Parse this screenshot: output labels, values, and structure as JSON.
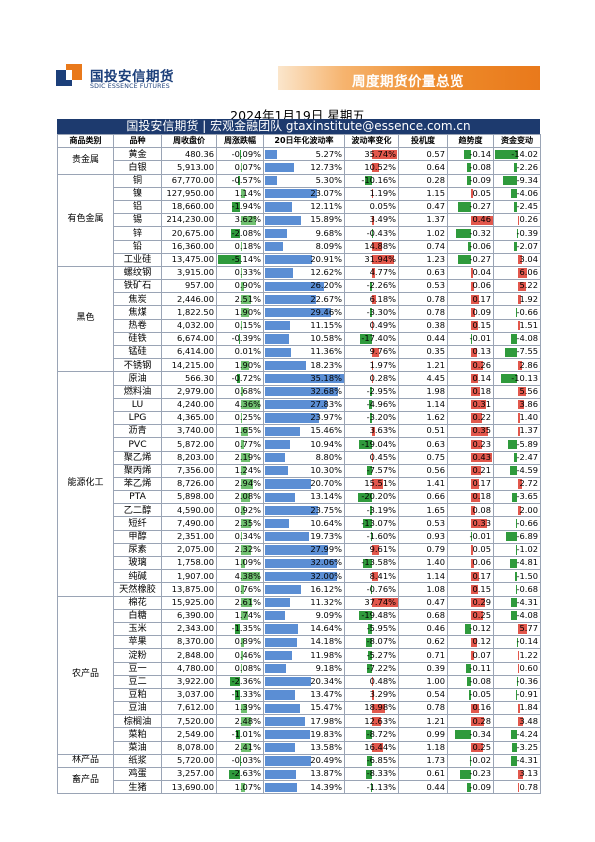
{
  "header": {
    "logo_cn": "国投安信期货",
    "logo_en": "SDIC ESSENCE FUTURES",
    "banner_title": "周度期货价量总览",
    "date": "2024年1月19日 星期五",
    "team_line": "国投安信期货 | 宏观金融团队 gtaxinstitute@essence.com.cn",
    "brand_color": "#1d3a6e",
    "accent_color": "#ee8c2c"
  },
  "columns": [
    "商品类别",
    "品种",
    "周收盘价",
    "周涨跌幅",
    "20日年化波动率",
    "波动率变化",
    "投机度",
    "趋势度",
    "资金变动"
  ],
  "groups": [
    {
      "category": "贵金属",
      "rows": [
        {
          "name": "黄金",
          "close": "480.36",
          "chg": "-0.09%",
          "vol": "5.27%",
          "volchg": "35.74%",
          "spec": "0.57",
          "trend": "-0.14",
          "fund": "-14.02"
        },
        {
          "name": "白银",
          "close": "5,913.00",
          "chg": "0.07%",
          "vol": "12.73%",
          "volchg": "10.52%",
          "spec": "0.64",
          "trend": "-0.08",
          "fund": "-2.26"
        }
      ]
    },
    {
      "category": "有色金属",
      "rows": [
        {
          "name": "铜",
          "close": "67,770.00",
          "chg": "-0.57%",
          "vol": "5.30%",
          "volchg": "-10.16%",
          "spec": "0.28",
          "trend": "-0.09",
          "fund": "-9.34"
        },
        {
          "name": "镍",
          "close": "127,950.00",
          "chg": "1.14%",
          "vol": "23.07%",
          "volchg": "1.19%",
          "spec": "1.15",
          "trend": "0.05",
          "fund": "-4.06"
        },
        {
          "name": "铝",
          "close": "18,660.00",
          "chg": "-1.94%",
          "vol": "12.11%",
          "volchg": "0.05%",
          "spec": "0.47",
          "trend": "-0.27",
          "fund": "-2.45"
        },
        {
          "name": "锡",
          "close": "214,230.00",
          "chg": "3.62%",
          "vol": "15.89%",
          "volchg": "3.49%",
          "spec": "1.37",
          "trend": "0.46",
          "fund": "0.26"
        },
        {
          "name": "锌",
          "close": "20,675.00",
          "chg": "-2.08%",
          "vol": "9.68%",
          "volchg": "-0.43%",
          "spec": "1.02",
          "trend": "-0.32",
          "fund": "-0.39"
        },
        {
          "name": "铅",
          "close": "16,360.00",
          "chg": "0.18%",
          "vol": "8.09%",
          "volchg": "14.88%",
          "spec": "0.74",
          "trend": "-0.06",
          "fund": "-2.07"
        },
        {
          "name": "工业硅",
          "close": "13,475.00",
          "chg": "-5.14%",
          "vol": "20.91%",
          "volchg": "31.94%",
          "spec": "1.23",
          "trend": "-0.27",
          "fund": "3.04"
        }
      ]
    },
    {
      "category": "黑色",
      "rows": [
        {
          "name": "螺纹钢",
          "close": "3,915.00",
          "chg": "0.33%",
          "vol": "12.62%",
          "volchg": "4.77%",
          "spec": "0.63",
          "trend": "0.04",
          "fund": "6.06"
        },
        {
          "name": "铁矿石",
          "close": "957.00",
          "chg": "0.90%",
          "vol": "26.20%",
          "volchg": "-2.26%",
          "spec": "0.53",
          "trend": "0.06",
          "fund": "5.22"
        },
        {
          "name": "焦炭",
          "close": "2,446.00",
          "chg": "2.51%",
          "vol": "22.67%",
          "volchg": "6.18%",
          "spec": "0.78",
          "trend": "0.17",
          "fund": "1.92"
        },
        {
          "name": "焦煤",
          "close": "1,822.50",
          "chg": "1.90%",
          "vol": "29.46%",
          "volchg": "-3.30%",
          "spec": "0.78",
          "trend": "0.09",
          "fund": "-0.66"
        },
        {
          "name": "热卷",
          "close": "4,032.00",
          "chg": "0.15%",
          "vol": "11.15%",
          "volchg": "0.49%",
          "spec": "0.38",
          "trend": "0.15",
          "fund": "1.51"
        },
        {
          "name": "硅铁",
          "close": "6,674.00",
          "chg": "-0.39%",
          "vol": "10.58%",
          "volchg": "-17.40%",
          "spec": "0.44",
          "trend": "-0.01",
          "fund": "-4.08"
        },
        {
          "name": "锰硅",
          "close": "6,414.00",
          "chg": "0.01%",
          "vol": "11.36%",
          "volchg": "9.76%",
          "spec": "0.35",
          "trend": "0.13",
          "fund": "-7.55"
        },
        {
          "name": "不锈钢",
          "close": "14,215.00",
          "chg": "1.90%",
          "vol": "18.23%",
          "volchg": "1.97%",
          "spec": "1.21",
          "trend": "0.26",
          "fund": "2.86"
        }
      ]
    },
    {
      "category": "能源化工",
      "rows": [
        {
          "name": "原油",
          "close": "566.30",
          "chg": "-0.72%",
          "vol": "35.18%",
          "volchg": "0.28%",
          "spec": "4.45",
          "trend": "0.14",
          "fund": "-10.13"
        },
        {
          "name": "燃料油",
          "close": "2,979.00",
          "chg": "0.68%",
          "vol": "32.68%",
          "volchg": "-2.95%",
          "spec": "1.98",
          "trend": "0.18",
          "fund": "5.56"
        },
        {
          "name": "LU",
          "close": "4,240.00",
          "chg": "4.36%",
          "vol": "27.83%",
          "volchg": "-4.96%",
          "spec": "1.14",
          "trend": "0.31",
          "fund": "3.86"
        },
        {
          "name": "LPG",
          "close": "4,365.00",
          "chg": "0.25%",
          "vol": "23.97%",
          "volchg": "-3.20%",
          "spec": "1.62",
          "trend": "0.22",
          "fund": "1.40"
        },
        {
          "name": "沥青",
          "close": "3,740.00",
          "chg": "1.65%",
          "vol": "15.46%",
          "volchg": "3.63%",
          "spec": "0.51",
          "trend": "0.35",
          "fund": "1.37"
        },
        {
          "name": "PVC",
          "close": "5,872.00",
          "chg": "0.77%",
          "vol": "10.94%",
          "volchg": "-19.04%",
          "spec": "0.63",
          "trend": "0.23",
          "fund": "-5.89"
        },
        {
          "name": "聚乙烯",
          "close": "8,203.00",
          "chg": "2.19%",
          "vol": "8.80%",
          "volchg": "0.45%",
          "spec": "0.75",
          "trend": "0.43",
          "fund": "-2.47"
        },
        {
          "name": "聚丙烯",
          "close": "7,356.00",
          "chg": "1.24%",
          "vol": "10.30%",
          "volchg": "-7.57%",
          "spec": "0.56",
          "trend": "0.21",
          "fund": "-4.59"
        },
        {
          "name": "苯乙烯",
          "close": "8,726.00",
          "chg": "2.94%",
          "vol": "20.70%",
          "volchg": "15.51%",
          "spec": "1.41",
          "trend": "0.17",
          "fund": "2.72"
        },
        {
          "name": "PTA",
          "close": "5,898.00",
          "chg": "2.08%",
          "vol": "13.14%",
          "volchg": "-20.20%",
          "spec": "0.66",
          "trend": "0.18",
          "fund": "-3.65"
        },
        {
          "name": "乙二醇",
          "close": "4,590.00",
          "chg": "0.92%",
          "vol": "23.75%",
          "volchg": "-3.19%",
          "spec": "1.65",
          "trend": "0.08",
          "fund": "2.00"
        },
        {
          "name": "短纤",
          "close": "7,490.00",
          "chg": "2.35%",
          "vol": "10.64%",
          "volchg": "-13.07%",
          "spec": "0.53",
          "trend": "0.33",
          "fund": "-0.66"
        },
        {
          "name": "甲醇",
          "close": "2,351.00",
          "chg": "0.34%",
          "vol": "19.73%",
          "volchg": "-1.60%",
          "spec": "0.93",
          "trend": "-0.01",
          "fund": "-6.89"
        },
        {
          "name": "尿素",
          "close": "2,075.00",
          "chg": "2.32%",
          "vol": "27.99%",
          "volchg": "9.61%",
          "spec": "0.79",
          "trend": "0.05",
          "fund": "-1.02"
        },
        {
          "name": "玻璃",
          "close": "1,758.00",
          "chg": "1.09%",
          "vol": "32.06%",
          "volchg": "-13.58%",
          "spec": "1.40",
          "trend": "0.06",
          "fund": "-4.81"
        },
        {
          "name": "纯碱",
          "close": "1,907.00",
          "chg": "4.38%",
          "vol": "32.00%",
          "volchg": "8.41%",
          "spec": "1.14",
          "trend": "0.17",
          "fund": "-1.50"
        },
        {
          "name": "天然橡胶",
          "close": "13,875.00",
          "chg": "0.76%",
          "vol": "16.12%",
          "volchg": "-0.76%",
          "spec": "1.08",
          "trend": "0.15",
          "fund": "-0.68"
        }
      ]
    },
    {
      "category": "农产品",
      "rows": [
        {
          "name": "棉花",
          "close": "15,925.00",
          "chg": "2.61%",
          "vol": "11.32%",
          "volchg": "37.74%",
          "spec": "0.47",
          "trend": "0.29",
          "fund": "-4.31"
        },
        {
          "name": "白糖",
          "close": "6,390.00",
          "chg": "1.74%",
          "vol": "9.09%",
          "volchg": "-19.48%",
          "spec": "0.68",
          "trend": "0.25",
          "fund": "-4.08"
        },
        {
          "name": "玉米",
          "close": "2,343.00",
          "chg": "-1.35%",
          "vol": "14.64%",
          "volchg": "-5.95%",
          "spec": "0.46",
          "trend": "-0.12",
          "fund": "5.77"
        },
        {
          "name": "苹果",
          "close": "8,370.00",
          "chg": "0.89%",
          "vol": "14.18%",
          "volchg": "-8.07%",
          "spec": "0.62",
          "trend": "0.12",
          "fund": "-0.14"
        },
        {
          "name": "淀粉",
          "close": "2,848.00",
          "chg": "0.46%",
          "vol": "11.98%",
          "volchg": "-5.27%",
          "spec": "0.71",
          "trend": "0.07",
          "fund": "1.22"
        },
        {
          "name": "豆一",
          "close": "4,780.00",
          "chg": "0.08%",
          "vol": "9.18%",
          "volchg": "-7.22%",
          "spec": "0.39",
          "trend": "-0.11",
          "fund": "0.60"
        },
        {
          "name": "豆二",
          "close": "3,922.00",
          "chg": "-2.36%",
          "vol": "20.34%",
          "volchg": "0.48%",
          "spec": "1.00",
          "trend": "-0.08",
          "fund": "-0.36"
        },
        {
          "name": "豆粕",
          "close": "3,037.00",
          "chg": "-1.33%",
          "vol": "13.47%",
          "volchg": "3.29%",
          "spec": "0.54",
          "trend": "-0.05",
          "fund": "-0.91"
        },
        {
          "name": "豆油",
          "close": "7,612.00",
          "chg": "1.39%",
          "vol": "15.47%",
          "volchg": "18.98%",
          "spec": "0.78",
          "trend": "0.16",
          "fund": "1.84"
        },
        {
          "name": "棕榈油",
          "close": "7,520.00",
          "chg": "2.48%",
          "vol": "17.98%",
          "volchg": "12.63%",
          "spec": "1.21",
          "trend": "0.28",
          "fund": "3.48"
        },
        {
          "name": "菜粕",
          "close": "2,549.00",
          "chg": "-1.01%",
          "vol": "19.83%",
          "volchg": "-8.72%",
          "spec": "0.99",
          "trend": "-0.34",
          "fund": "-4.24"
        },
        {
          "name": "菜油",
          "close": "8,078.00",
          "chg": "2.41%",
          "vol": "13.58%",
          "volchg": "16.44%",
          "spec": "1.18",
          "trend": "0.25",
          "fund": "-3.25"
        }
      ]
    },
    {
      "category": "林产品",
      "rows": [
        {
          "name": "纸浆",
          "close": "5,720.00",
          "chg": "-0.03%",
          "vol": "20.49%",
          "volchg": "-6.85%",
          "spec": "1.73",
          "trend": "-0.02",
          "fund": "-4.31"
        }
      ]
    },
    {
      "category": "畜产品",
      "rows": [
        {
          "name": "鸡蛋",
          "close": "3,257.00",
          "chg": "-2.63%",
          "vol": "13.87%",
          "volchg": "-8.33%",
          "spec": "0.61",
          "trend": "-0.23",
          "fund": "3.13"
        },
        {
          "name": "生猪",
          "close": "13,690.00",
          "chg": "1.07%",
          "vol": "14.39%",
          "volchg": "-1.13%",
          "spec": "0.44",
          "trend": "-0.09",
          "fund": "0.78"
        }
      ]
    }
  ]
}
